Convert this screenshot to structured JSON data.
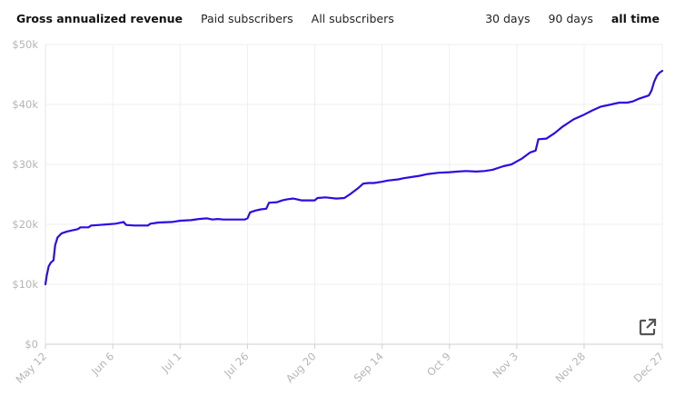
{
  "tabs": {
    "metric": [
      {
        "label": "Gross annualized revenue",
        "active": true
      },
      {
        "label": "Paid subscribers",
        "active": false
      },
      {
        "label": "All subscribers",
        "active": false
      }
    ],
    "range": [
      {
        "label": "30 days",
        "active": false
      },
      {
        "label": "90 days",
        "active": false
      },
      {
        "label": "all time",
        "active": true
      }
    ]
  },
  "icons": {
    "external": "external-link-icon"
  },
  "chart_data": {
    "type": "line",
    "title": "",
    "xlabel": "",
    "ylabel": "",
    "ylim": [
      0,
      50000
    ],
    "yticks": [
      0,
      10000,
      20000,
      30000,
      40000,
      50000
    ],
    "ytick_labels": [
      "$0",
      "$10k",
      "$20k",
      "$30k",
      "$40k",
      "$50k"
    ],
    "xtick_labels": [
      "May 12",
      "Jun 6",
      "Jul 1",
      "Jul 26",
      "Aug 20",
      "Sep 14",
      "Oct 9",
      "Nov 3",
      "Nov 28",
      "Dec 27"
    ],
    "x_day_offsets": [
      0,
      25,
      50,
      75,
      100,
      125,
      150,
      175,
      200,
      229
    ],
    "grid": true,
    "line_color": "#2b0de0",
    "series": [
      {
        "name": "",
        "points": [
          [
            0,
            10000
          ],
          [
            0.5,
            11500
          ],
          [
            1.2,
            13000
          ],
          [
            2,
            13600
          ],
          [
            3,
            14000
          ],
          [
            3.6,
            16500
          ],
          [
            4.5,
            17800
          ],
          [
            6,
            18500
          ],
          [
            8,
            18800
          ],
          [
            10,
            19000
          ],
          [
            12,
            19200
          ],
          [
            13,
            19500
          ],
          [
            16,
            19500
          ],
          [
            17,
            19800
          ],
          [
            20,
            19900
          ],
          [
            23,
            20000
          ],
          [
            26,
            20100
          ],
          [
            29,
            20400
          ],
          [
            30,
            19900
          ],
          [
            33,
            19800
          ],
          [
            35,
            19800
          ],
          [
            38,
            19800
          ],
          [
            39,
            20100
          ],
          [
            42,
            20300
          ],
          [
            47,
            20400
          ],
          [
            50,
            20600
          ],
          [
            54,
            20700
          ],
          [
            57,
            20900
          ],
          [
            60,
            21000
          ],
          [
            62,
            20800
          ],
          [
            64,
            20900
          ],
          [
            66,
            20800
          ],
          [
            71,
            20800
          ],
          [
            74,
            20800
          ],
          [
            75,
            21000
          ],
          [
            76,
            22000
          ],
          [
            78,
            22300
          ],
          [
            80,
            22500
          ],
          [
            82,
            22600
          ],
          [
            83,
            23600
          ],
          [
            86,
            23700
          ],
          [
            88,
            24000
          ],
          [
            90,
            24200
          ],
          [
            92,
            24300
          ],
          [
            95,
            24000
          ],
          [
            100,
            24000
          ],
          [
            101,
            24400
          ],
          [
            104,
            24500
          ],
          [
            108,
            24300
          ],
          [
            111,
            24400
          ],
          [
            113,
            25000
          ],
          [
            116,
            26000
          ],
          [
            118,
            26800
          ],
          [
            120,
            26900
          ],
          [
            122,
            26900
          ],
          [
            125,
            27100
          ],
          [
            127,
            27300
          ],
          [
            131,
            27500
          ],
          [
            133,
            27700
          ],
          [
            136,
            27900
          ],
          [
            139,
            28100
          ],
          [
            142,
            28400
          ],
          [
            146,
            28600
          ],
          [
            150,
            28700
          ],
          [
            153,
            28800
          ],
          [
            156,
            28900
          ],
          [
            160,
            28800
          ],
          [
            163,
            28900
          ],
          [
            166,
            29100
          ],
          [
            170,
            29700
          ],
          [
            173,
            30000
          ],
          [
            175,
            30500
          ],
          [
            177,
            31000
          ],
          [
            180,
            32000
          ],
          [
            182,
            32300
          ],
          [
            183,
            34200
          ],
          [
            186,
            34300
          ],
          [
            189,
            35200
          ],
          [
            192,
            36300
          ],
          [
            196,
            37500
          ],
          [
            200,
            38300
          ],
          [
            203,
            39000
          ],
          [
            206,
            39600
          ],
          [
            210,
            40000
          ],
          [
            213,
            40300
          ],
          [
            216,
            40300
          ],
          [
            218,
            40500
          ],
          [
            220,
            40900
          ],
          [
            222,
            41200
          ],
          [
            224,
            41500
          ],
          [
            225,
            42300
          ],
          [
            226,
            43800
          ],
          [
            227,
            44800
          ],
          [
            228,
            45300
          ],
          [
            229,
            45600
          ]
        ]
      }
    ]
  }
}
